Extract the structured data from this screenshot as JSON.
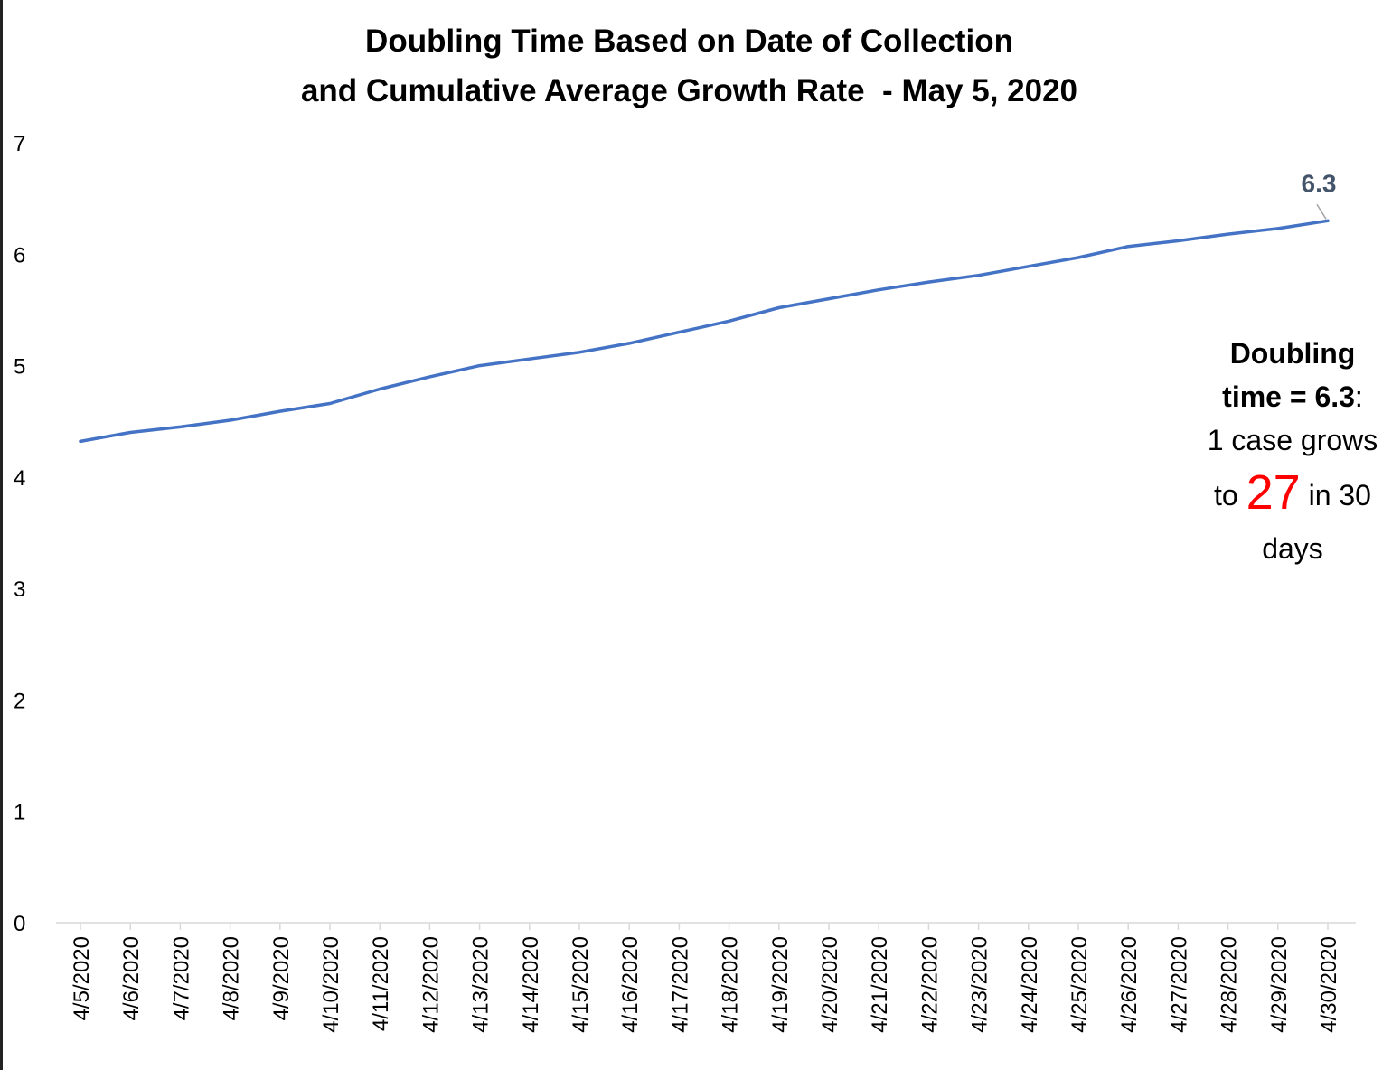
{
  "chart_data": {
    "type": "line",
    "title_line1": "Doubling Time Based on Date of Collection",
    "title_line2": "and Cumulative Average Growth Rate  - May 5, 2020",
    "xlabel": "",
    "ylabel": "",
    "ylim": [
      0,
      7
    ],
    "y_ticks": [
      "0",
      "1",
      "2",
      "3",
      "4",
      "5",
      "6",
      "7"
    ],
    "categories": [
      "4/5/2020",
      "4/6/2020",
      "4/7/2020",
      "4/8/2020",
      "4/9/2020",
      "4/10/2020",
      "4/11/2020",
      "4/12/2020",
      "4/13/2020",
      "4/14/2020",
      "4/15/2020",
      "4/16/2020",
      "4/17/2020",
      "4/18/2020",
      "4/19/2020",
      "4/20/2020",
      "4/21/2020",
      "4/22/2020",
      "4/23/2020",
      "4/24/2020",
      "4/25/2020",
      "4/26/2020",
      "4/27/2020",
      "4/28/2020",
      "4/29/2020",
      "4/30/2020"
    ],
    "series": [
      {
        "values": [
          4.32,
          4.4,
          4.45,
          4.51,
          4.59,
          4.66,
          4.79,
          4.9,
          5.0,
          5.06,
          5.12,
          5.2,
          5.3,
          5.4,
          5.52,
          5.6,
          5.68,
          5.75,
          5.81,
          5.89,
          5.97,
          6.07,
          6.12,
          6.18,
          6.23,
          6.3
        ],
        "color": "#4472c4"
      }
    ],
    "data_label": {
      "text": "6.3",
      "color": "#44546a"
    },
    "grid": false,
    "legend": "none"
  },
  "annotation": {
    "line1": "Doubling",
    "line2_bold": "time = 6.3",
    "line2_rest": ":",
    "line3": "1 case grows",
    "line4_pre": "to ",
    "line4_big": "27",
    "line4_post": " in 30",
    "line5": "days"
  },
  "colors": {
    "line": "#4472c4",
    "axis": "#d9d9d9",
    "highlight": "#ff0000"
  }
}
